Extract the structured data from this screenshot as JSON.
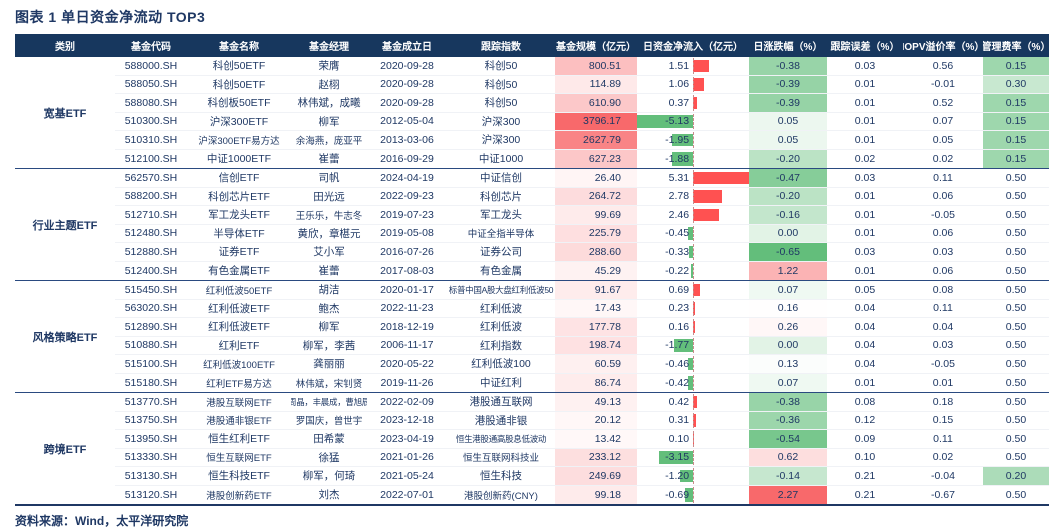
{
  "title": "图表 1 单日资金净流动 TOP3",
  "source": "资料来源：Wind，太平洋研究院",
  "columns": [
    "类别",
    "基金代码",
    "基金名称",
    "基金经理",
    "基金成立日",
    "跟踪指数",
    "基金规模（亿元）",
    "日资金净流入（亿元）",
    "日涨跌幅（%）",
    "跟踪误差（%）",
    "IOPV溢价率（%）",
    "管理费率（%）"
  ],
  "groups": [
    {
      "category": "宽基ETF",
      "rows": [
        {
          "code": "588000.SH",
          "name": "科创50ETF",
          "manager": "荣膺",
          "date": "2020-09-28",
          "index": "科创50",
          "size": "800.51",
          "flow": "1.51",
          "change": "-0.38",
          "te": "0.03",
          "iopv": "0.56",
          "fee": "0.15"
        },
        {
          "code": "588050.SH",
          "name": "科创50ETF",
          "manager": "赵栩",
          "date": "2020-09-28",
          "index": "科创50",
          "size": "114.89",
          "flow": "1.06",
          "change": "-0.39",
          "te": "0.01",
          "iopv": "-0.01",
          "fee": "0.30"
        },
        {
          "code": "588080.SH",
          "name": "科创板50ETF",
          "manager": "林伟斌，成曦",
          "date": "2020-09-28",
          "index": "科创50",
          "size": "610.90",
          "flow": "0.37",
          "change": "-0.39",
          "te": "0.01",
          "iopv": "0.52",
          "fee": "0.15"
        },
        {
          "code": "510300.SH",
          "name": "沪深300ETF",
          "manager": "柳军",
          "date": "2012-05-04",
          "index": "沪深300",
          "size": "3796.17",
          "flow": "-5.13",
          "change": "0.05",
          "te": "0.01",
          "iopv": "0.07",
          "fee": "0.15"
        },
        {
          "code": "510310.SH",
          "name": "沪深300ETF易方达",
          "manager": "余海燕，庞亚平",
          "date": "2013-03-06",
          "index": "沪深300",
          "size": "2627.79",
          "flow": "-1.95",
          "change": "0.05",
          "te": "0.01",
          "iopv": "0.05",
          "fee": "0.15"
        },
        {
          "code": "512100.SH",
          "name": "中证1000ETF",
          "manager": "崔蕾",
          "date": "2016-09-29",
          "index": "中证1000",
          "size": "627.23",
          "flow": "-1.88",
          "change": "-0.20",
          "te": "0.02",
          "iopv": "0.02",
          "fee": "0.15"
        }
      ]
    },
    {
      "category": "行业主题ETF",
      "rows": [
        {
          "code": "562570.SH",
          "name": "信创ETF",
          "manager": "司帆",
          "date": "2024-04-19",
          "index": "中证信创",
          "size": "26.40",
          "flow": "5.31",
          "change": "-0.47",
          "te": "0.03",
          "iopv": "0.11",
          "fee": "0.50"
        },
        {
          "code": "588200.SH",
          "name": "科创芯片ETF",
          "manager": "田光远",
          "date": "2022-09-23",
          "index": "科创芯片",
          "size": "264.72",
          "flow": "2.78",
          "change": "-0.20",
          "te": "0.01",
          "iopv": "0.06",
          "fee": "0.50"
        },
        {
          "code": "512710.SH",
          "name": "军工龙头ETF",
          "manager": "王乐乐，牛志冬",
          "date": "2019-07-23",
          "index": "军工龙头",
          "size": "99.69",
          "flow": "2.46",
          "change": "-0.16",
          "te": "0.01",
          "iopv": "-0.05",
          "fee": "0.50"
        },
        {
          "code": "512480.SH",
          "name": "半导体ETF",
          "manager": "黄欣，章椹元",
          "date": "2019-05-08",
          "index": "中证全指半导体",
          "size": "225.79",
          "flow": "-0.45",
          "change": "0.00",
          "te": "0.01",
          "iopv": "0.06",
          "fee": "0.50"
        },
        {
          "code": "512880.SH",
          "name": "证券ETF",
          "manager": "艾小军",
          "date": "2016-07-26",
          "index": "证券公司",
          "size": "288.60",
          "flow": "-0.33",
          "change": "-0.65",
          "te": "0.03",
          "iopv": "0.03",
          "fee": "0.50"
        },
        {
          "code": "512400.SH",
          "name": "有色金属ETF",
          "manager": "崔蕾",
          "date": "2017-08-03",
          "index": "有色金属",
          "size": "45.29",
          "flow": "-0.22",
          "change": "1.22",
          "te": "0.01",
          "iopv": "0.06",
          "fee": "0.50"
        }
      ]
    },
    {
      "category": "风格策略ETF",
      "rows": [
        {
          "code": "515450.SH",
          "name": "红利低波50ETF",
          "manager": "胡洁",
          "date": "2020-01-17",
          "index": "标普中国A股大盘红利低波50",
          "size": "91.67",
          "flow": "0.69",
          "change": "0.07",
          "te": "0.05",
          "iopv": "0.08",
          "fee": "0.50"
        },
        {
          "code": "563020.SH",
          "name": "红利低波ETF",
          "manager": "鲍杰",
          "date": "2022-11-23",
          "index": "红利低波",
          "size": "17.43",
          "flow": "0.23",
          "change": "0.16",
          "te": "0.04",
          "iopv": "0.11",
          "fee": "0.50"
        },
        {
          "code": "512890.SH",
          "name": "红利低波ETF",
          "manager": "柳军",
          "date": "2018-12-19",
          "index": "红利低波",
          "size": "177.78",
          "flow": "0.16",
          "change": "0.26",
          "te": "0.04",
          "iopv": "0.04",
          "fee": "0.50"
        },
        {
          "code": "510880.SH",
          "name": "红利ETF",
          "manager": "柳军，李茜",
          "date": "2006-11-17",
          "index": "红利指数",
          "size": "198.74",
          "flow": "-1.77",
          "change": "0.00",
          "te": "0.04",
          "iopv": "0.03",
          "fee": "0.50"
        },
        {
          "code": "515100.SH",
          "name": "红利低波100ETF",
          "manager": "龚丽丽",
          "date": "2020-05-22",
          "index": "红利低波100",
          "size": "60.59",
          "flow": "-0.46",
          "change": "0.13",
          "te": "0.04",
          "iopv": "-0.05",
          "fee": "0.50"
        },
        {
          "code": "515180.SH",
          "name": "红利ETF易方达",
          "manager": "林伟斌，宋钊贤",
          "date": "2019-11-26",
          "index": "中证红利",
          "size": "86.74",
          "flow": "-0.42",
          "change": "0.07",
          "te": "0.01",
          "iopv": "0.01",
          "fee": "0.50"
        }
      ]
    },
    {
      "category": "跨境ETF",
      "rows": [
        {
          "code": "513770.SH",
          "name": "港股互联网ETF",
          "manager": "周晶，丰晨成，曹旭辰",
          "date": "2022-02-09",
          "index": "港股通互联网",
          "size": "49.13",
          "flow": "0.42",
          "change": "-0.38",
          "te": "0.08",
          "iopv": "0.18",
          "fee": "0.50"
        },
        {
          "code": "513750.SH",
          "name": "港股通非银ETF",
          "manager": "罗国庆，曾世宇",
          "date": "2023-12-18",
          "index": "港股通非银",
          "size": "20.12",
          "flow": "0.31",
          "change": "-0.36",
          "te": "0.12",
          "iopv": "0.15",
          "fee": "0.50"
        },
        {
          "code": "513950.SH",
          "name": "恒生红利ETF",
          "manager": "田希蒙",
          "date": "2023-04-19",
          "index": "恒生港股通高股息低波动",
          "size": "13.42",
          "flow": "0.10",
          "change": "-0.54",
          "te": "0.09",
          "iopv": "0.11",
          "fee": "0.50"
        },
        {
          "code": "513330.SH",
          "name": "恒生互联网ETF",
          "manager": "徐猛",
          "date": "2021-01-26",
          "index": "恒生互联网科技业",
          "size": "233.12",
          "flow": "-3.15",
          "change": "0.62",
          "te": "0.10",
          "iopv": "0.02",
          "fee": "0.50"
        },
        {
          "code": "513130.SH",
          "name": "恒生科技ETF",
          "manager": "柳军，何琦",
          "date": "2021-05-24",
          "index": "恒生科技",
          "size": "249.69",
          "flow": "-1.20",
          "change": "-0.14",
          "te": "0.21",
          "iopv": "-0.04",
          "fee": "0.20"
        },
        {
          "code": "513120.SH",
          "name": "港股创新药ETF",
          "manager": "刘杰",
          "date": "2022-07-01",
          "index": "港股创新药(CNY)",
          "size": "99.18",
          "flow": "-0.69",
          "change": "2.27",
          "te": "0.21",
          "iopv": "-0.67",
          "fee": "0.50"
        }
      ]
    }
  ],
  "colors": {
    "header_bg": "#17375E",
    "navy": "#1F3864",
    "bar_positive": "#FF5151",
    "bar_negative": "#63BE7B",
    "scale_green": "#63BE7B",
    "scale_red": "#F8696B"
  },
  "scales": {
    "size_max": "3796.17",
    "flow_max": "5.31",
    "flow_min": "-5.13",
    "change_min": "-0.65",
    "change_mid": "0.15",
    "change_max": "2.27"
  }
}
